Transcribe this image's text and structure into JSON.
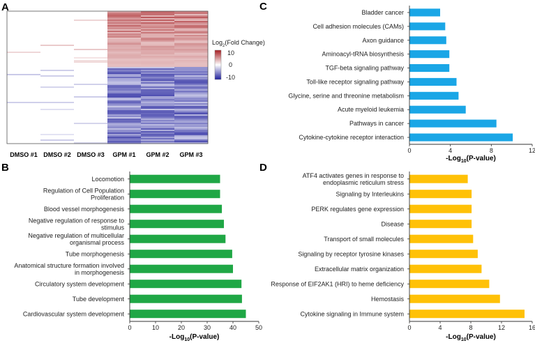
{
  "panels": [
    {
      "letter": "A"
    },
    {
      "letter": "B"
    },
    {
      "letter": "C"
    },
    {
      "letter": "D"
    }
  ],
  "heatmap": {
    "columns": [
      "DMSO #1",
      "DMSO #2",
      "DMSO #3",
      "GPM #1",
      "GPM #2",
      "GPM #3"
    ],
    "legend_title_main": "Log",
    "legend_title_sub": "2",
    "legend_title_tail": "(Fold Change)",
    "legend_ticks": [
      "10",
      "0",
      "-10"
    ],
    "colors": {
      "high": "#a51e22",
      "mid": "#ffffff",
      "low": "#1f1f9c"
    }
  },
  "chart_data": [
    {
      "panel": "C",
      "type": "bar",
      "orientation": "horizontal",
      "color": "#1aa6e6",
      "categories": [
        "Bladder cancer",
        "Cell adhesion molecules (CAMs)",
        "Axon guidance",
        "Aminoacyl-tRNA biosynthesis",
        "TGF-beta signaling pathway",
        "Toll-like receptor signaling pathway",
        "Glycine, serine and threonine metabolism",
        "Acute myeloid leukemia",
        "Pathways in cancer",
        "Cytokine-cytokine receptor interaction"
      ],
      "values": [
        3.0,
        3.5,
        3.6,
        3.9,
        3.9,
        4.6,
        4.8,
        5.5,
        8.5,
        10.1
      ],
      "xlabel_main": "-Log",
      "xlabel_sub": "10",
      "xlabel_tail": "(P-value)",
      "xlim": [
        0,
        12
      ],
      "xticks": [
        "0",
        "4",
        "8",
        "12"
      ]
    },
    {
      "panel": "B",
      "type": "bar",
      "orientation": "horizontal",
      "color": "#1fa745",
      "categories": [
        "Locomotion",
        "Regulation of Cell Population Proliferation",
        "Blood vessel morphogenesis",
        "Negative regulation of response to stimulus",
        "Negative regulation of multicellular organismal process",
        "Tube morphogenesis",
        "Anatomical structure formation involved in morphogenesis",
        "Circulatory system development",
        "Tube development",
        "Cardiovascular system development"
      ],
      "values": [
        35,
        35,
        35.7,
        36.5,
        37.1,
        39.7,
        40,
        43.3,
        43.5,
        45
      ],
      "xlabel_main": "-Log",
      "xlabel_sub": "10",
      "xlabel_tail": "(P-value)",
      "xlim": [
        0,
        50
      ],
      "xticks": [
        "0",
        "10",
        "20",
        "30",
        "40",
        "50"
      ]
    },
    {
      "panel": "D",
      "type": "bar",
      "orientation": "horizontal",
      "color": "#ffc107",
      "categories": [
        "ATF4 activates genes in response to endoplasmic reticulum stress",
        "Signaling by Interleukins",
        "PERK regulates gene expression",
        "Disease",
        "Transport of small molecules",
        "Signaling by receptor tyrosine kinases",
        "Extracellular matrix organization",
        "Response of EIF2AK1 (HRI) to heme deficiency",
        "Hemostasis",
        "Cytokine signaling in Immune system"
      ],
      "values": [
        7.6,
        8.1,
        8.1,
        8.1,
        8.3,
        8.9,
        9.4,
        10.4,
        11.8,
        15.0
      ],
      "xlabel_main": "-Log",
      "xlabel_sub": "10",
      "xlabel_tail": "(P-value)",
      "xlim": [
        0,
        16
      ],
      "xticks": [
        "0",
        "4",
        "8",
        "12",
        "16"
      ]
    }
  ]
}
